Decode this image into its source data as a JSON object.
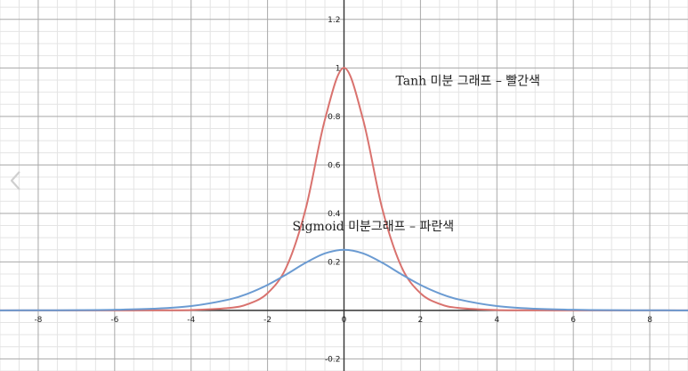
{
  "chart_data": {
    "type": "line",
    "title": "",
    "xlabel": "",
    "ylabel": "",
    "xlim": [
      -9.0,
      9.0
    ],
    "ylim": [
      -0.25,
      1.28
    ],
    "grid": true,
    "x_ticks": [
      -8,
      -6,
      -4,
      -2,
      0,
      2,
      4,
      6,
      8
    ],
    "y_ticks": [
      -0.2,
      0.2,
      0.4,
      0.6,
      0.8,
      1,
      1.2
    ],
    "x_tick_labels": [
      "-8",
      "-6",
      "-4",
      "-2",
      "0",
      "2",
      "4",
      "6",
      "8"
    ],
    "y_tick_labels": [
      "-0.2",
      "0.2",
      "0.4",
      "0.6",
      "0.8",
      "1",
      "1.2"
    ],
    "x": [
      -9,
      -8,
      -7,
      -6,
      -5,
      -4,
      -3,
      -2.5,
      -2,
      -1.5,
      -1,
      -0.5,
      0,
      0.5,
      1,
      1.5,
      2,
      2.5,
      3,
      4,
      5,
      6,
      7,
      8,
      9
    ],
    "series": [
      {
        "color": "#d9726e",
        "values": [
          0.0,
          0.0,
          0.0,
          0.0,
          0.0002,
          0.0013,
          0.0099,
          0.0266,
          0.0707,
          0.1807,
          0.42,
          0.7864,
          1.0,
          0.7864,
          0.42,
          0.1807,
          0.0707,
          0.0266,
          0.0099,
          0.0013,
          0.0002,
          0.0,
          0.0,
          0.0,
          0.0
        ]
      },
      {
        "color": "#6b9bd2",
        "values": [
          0.0001,
          0.0003,
          0.0009,
          0.0025,
          0.0066,
          0.0177,
          0.0452,
          0.0701,
          0.105,
          0.1491,
          0.1966,
          0.235,
          0.25,
          0.235,
          0.1966,
          0.1491,
          0.105,
          0.0701,
          0.0452,
          0.0177,
          0.0066,
          0.0025,
          0.0009,
          0.0003,
          0.0001
        ]
      }
    ],
    "annotations": [
      {
        "text": "Tanh 미분 그래프 – 빨간색",
        "x": 1.35,
        "y": 0.93
      },
      {
        "text": "Sigmoid 미분그래프  – 파란색",
        "x": -1.35,
        "y": 0.33
      }
    ]
  },
  "icons": {
    "nav": "chevron-left-icon"
  },
  "colors": {
    "axis": "#333333",
    "major_grid": "#a8a8a8",
    "minor_grid": "#e4e4e4",
    "tick_text": "#222222",
    "nav_arrow": "#cfcfcf"
  }
}
